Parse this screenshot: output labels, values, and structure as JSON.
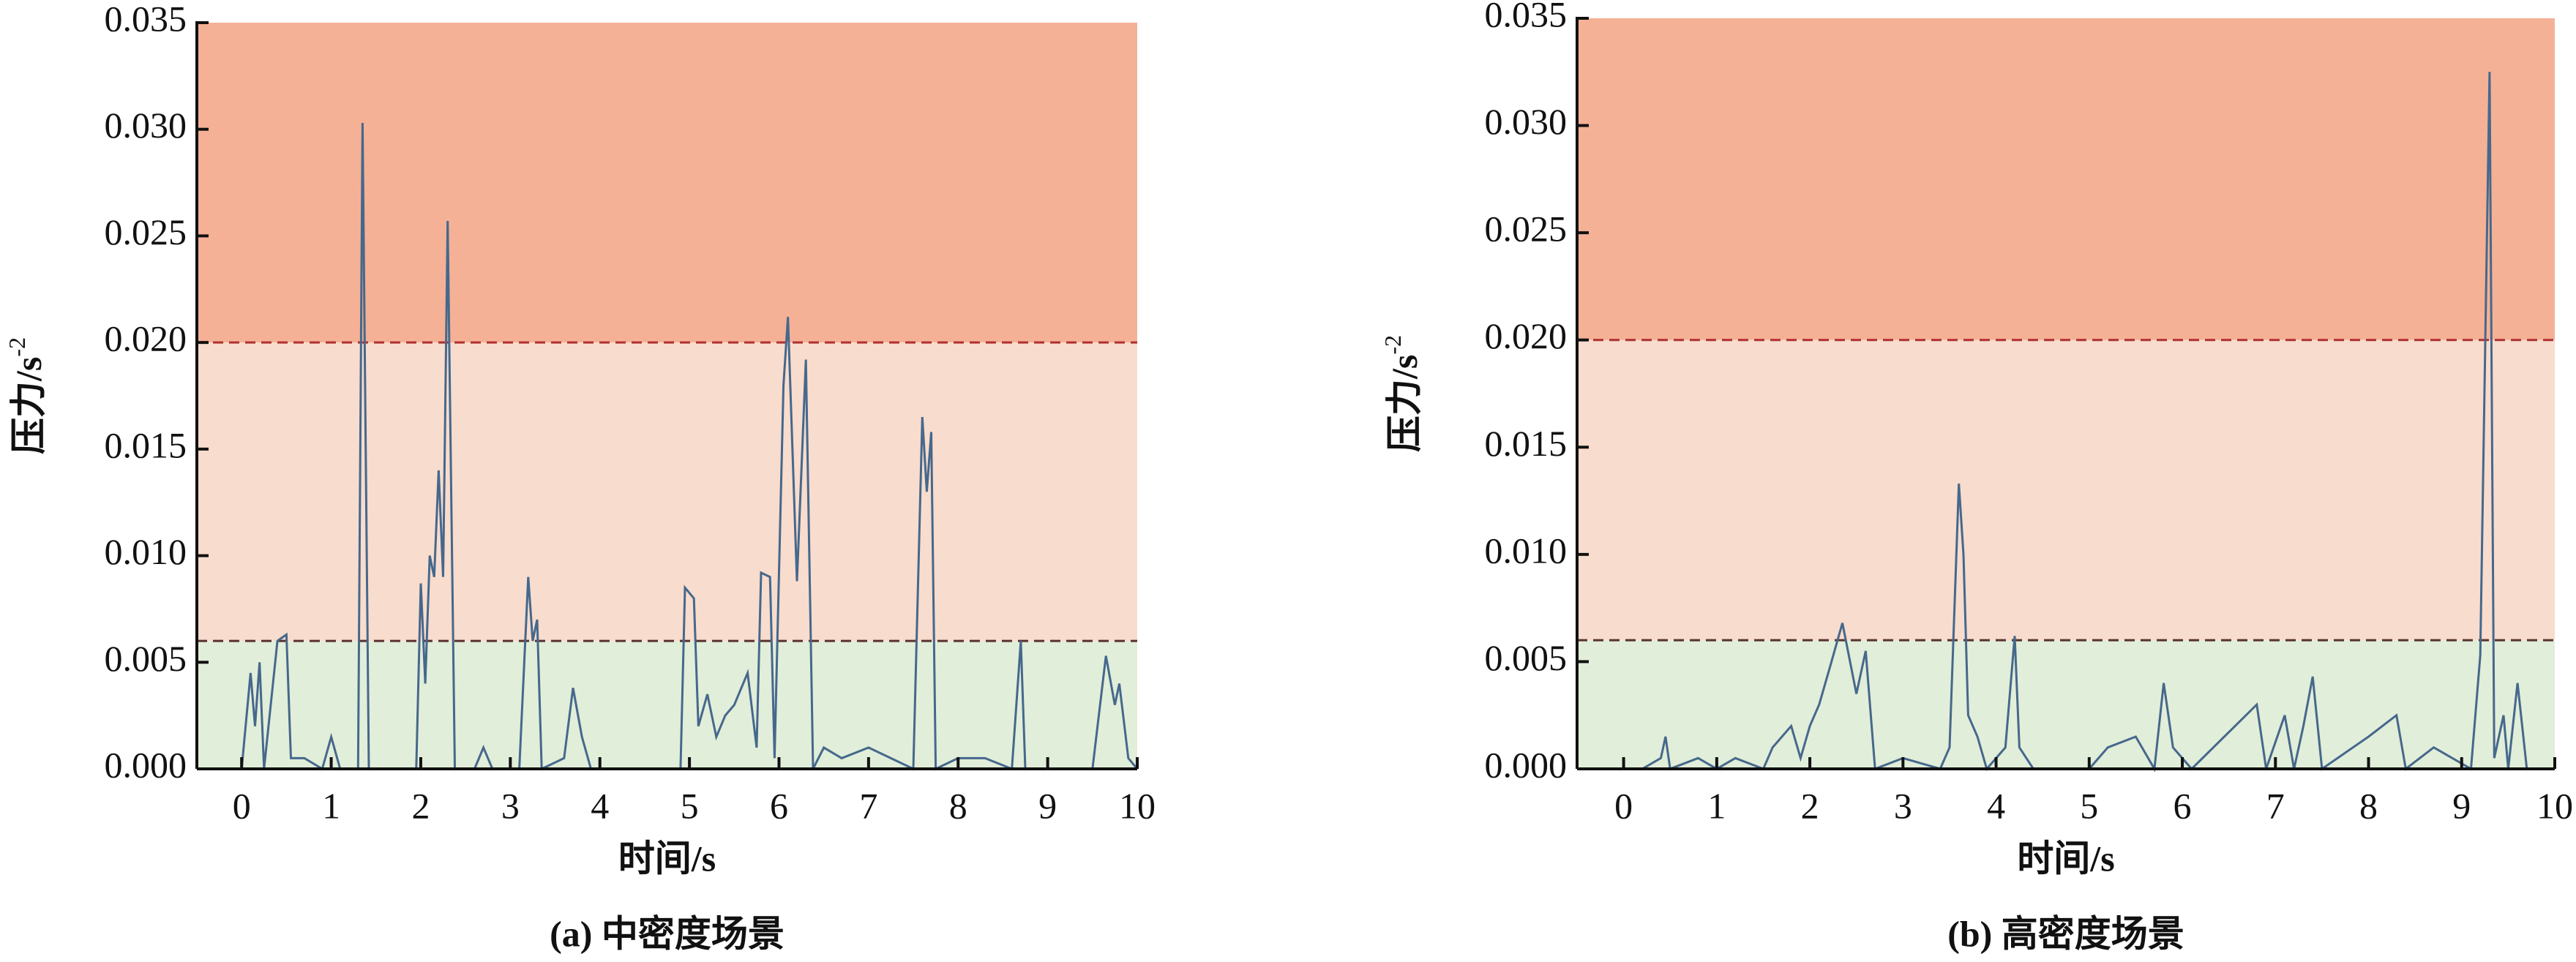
{
  "chart_data": [
    {
      "type": "line",
      "caption": "(a) 中密度场景",
      "xlabel": "时间/s",
      "ylabel": "压力/s",
      "ylabel_superscript": "-2",
      "xlim": [
        -0.5,
        10
      ],
      "ylim": [
        0,
        0.035
      ],
      "xticks": [
        0,
        1,
        2,
        3,
        4,
        5,
        6,
        7,
        8,
        9,
        10
      ],
      "yticks": [
        {
          "value": 0,
          "label": "0.000"
        },
        {
          "value": 0.005,
          "label": "0.005"
        },
        {
          "value": 0.01,
          "label": "0.010"
        },
        {
          "value": 0.015,
          "label": "0.015"
        },
        {
          "value": 0.02,
          "label": "0.020"
        },
        {
          "value": 0.025,
          "label": "0.025"
        },
        {
          "value": 0.03,
          "label": "0.030"
        },
        {
          "value": 0.035,
          "label": "0.035"
        }
      ],
      "thresholds": [
        0.006,
        0.02
      ],
      "band_colors": [
        "#e1eed9",
        "#f8dccd",
        "#f4b196"
      ],
      "threshold_colors": [
        "#5a3030",
        "#b03030"
      ],
      "series": [
        {
          "color": "#46688c",
          "x": [
            0,
            0.1,
            0.15,
            0.2,
            0.25,
            0.4,
            0.5,
            0.55,
            0.7,
            0.9,
            1.0,
            1.1,
            1.3,
            1.35,
            1.42,
            1.5,
            1.95,
            2.0,
            2.05,
            2.1,
            2.15,
            2.2,
            2.25,
            2.3,
            2.38,
            2.6,
            2.7,
            2.8,
            3.1,
            3.2,
            3.25,
            3.3,
            3.35,
            3.6,
            3.7,
            3.8,
            3.9,
            4.2,
            4.9,
            4.95,
            5.05,
            5.1,
            5.2,
            5.3,
            5.4,
            5.5,
            5.65,
            5.75,
            5.8,
            5.9,
            5.95,
            6.05,
            6.1,
            6.2,
            6.3,
            6.38,
            6.5,
            6.7,
            7.0,
            7.5,
            7.6,
            7.65,
            7.7,
            7.75,
            8.0,
            8.3,
            8.6,
            8.7,
            8.75,
            9.5,
            9.65,
            9.75,
            9.8,
            9.9,
            10
          ],
          "values": [
            0,
            0.0045,
            0.002,
            0.005,
            0,
            0.006,
            0.0063,
            0.0005,
            0.0005,
            0,
            0.0015,
            0,
            0,
            0.0303,
            0,
            0,
            0,
            0.0087,
            0.004,
            0.01,
            0.009,
            0.014,
            0.009,
            0.0257,
            0,
            0,
            0.001,
            0,
            0,
            0.009,
            0.006,
            0.007,
            0,
            0.0005,
            0.0038,
            0.0015,
            0,
            0,
            0,
            0.0085,
            0.008,
            0.002,
            0.0035,
            0.0015,
            0.0025,
            0.003,
            0.0045,
            0.001,
            0.0092,
            0.009,
            0.0005,
            0.018,
            0.0212,
            0.0088,
            0.0192,
            0,
            0.001,
            0.0005,
            0.001,
            0,
            0.0165,
            0.013,
            0.0158,
            0,
            0.0005,
            0.0005,
            0,
            0.006,
            0,
            0,
            0.0053,
            0.003,
            0.004,
            0.0005,
            0
          ]
        }
      ]
    },
    {
      "type": "line",
      "caption": "(b) 高密度场景",
      "xlabel": "时间/s",
      "ylabel": "压力/s",
      "ylabel_superscript": "-2",
      "xlim": [
        -0.5,
        10
      ],
      "ylim": [
        0,
        0.035
      ],
      "xticks": [
        0,
        1,
        2,
        3,
        4,
        5,
        6,
        7,
        8,
        9,
        10
      ],
      "yticks": [
        {
          "value": 0,
          "label": "0.000"
        },
        {
          "value": 0.005,
          "label": "0.005"
        },
        {
          "value": 0.01,
          "label": "0.010"
        },
        {
          "value": 0.015,
          "label": "0.015"
        },
        {
          "value": 0.02,
          "label": "0.020"
        },
        {
          "value": 0.025,
          "label": "0.025"
        },
        {
          "value": 0.03,
          "label": "0.030"
        },
        {
          "value": 0.035,
          "label": "0.035"
        }
      ],
      "thresholds": [
        0.006,
        0.02
      ],
      "band_colors": [
        "#e1eed9",
        "#f8dccd",
        "#f4b196"
      ],
      "threshold_colors": [
        "#5a3030",
        "#b03030"
      ],
      "series": [
        {
          "color": "#46688c",
          "x": [
            0.2,
            0.4,
            0.45,
            0.5,
            0.8,
            1.0,
            1.2,
            1.5,
            1.6,
            1.8,
            1.9,
            2.0,
            2.1,
            2.2,
            2.35,
            2.5,
            2.6,
            2.7,
            3.0,
            3.4,
            3.5,
            3.6,
            3.65,
            3.7,
            3.8,
            3.9,
            4.1,
            4.2,
            4.25,
            4.4,
            5.0,
            5.2,
            5.5,
            5.7,
            5.8,
            5.9,
            6.1,
            6.8,
            6.9,
            7.1,
            7.2,
            7.3,
            7.4,
            7.5,
            8.0,
            8.3,
            8.4,
            8.7,
            9.1,
            9.2,
            9.3,
            9.35,
            9.45,
            9.5,
            9.6,
            9.7
          ],
          "values": [
            0,
            0.0005,
            0.0015,
            0,
            0.0005,
            0,
            0.0005,
            0,
            0.001,
            0.002,
            0.0005,
            0.002,
            0.003,
            0.0045,
            0.0068,
            0.0035,
            0.0055,
            0,
            0.0005,
            0,
            0.001,
            0.0133,
            0.01,
            0.0025,
            0.0015,
            0,
            0.001,
            0.0062,
            0.001,
            0,
            0,
            0.001,
            0.0015,
            0,
            0.004,
            0.001,
            0,
            0.003,
            0,
            0.0025,
            0,
            0.002,
            0.0043,
            0,
            0.0015,
            0.0025,
            0,
            0.001,
            0,
            0.0053,
            0.0325,
            0.0005,
            0.0025,
            0,
            0.004,
            0
          ]
        }
      ]
    }
  ]
}
